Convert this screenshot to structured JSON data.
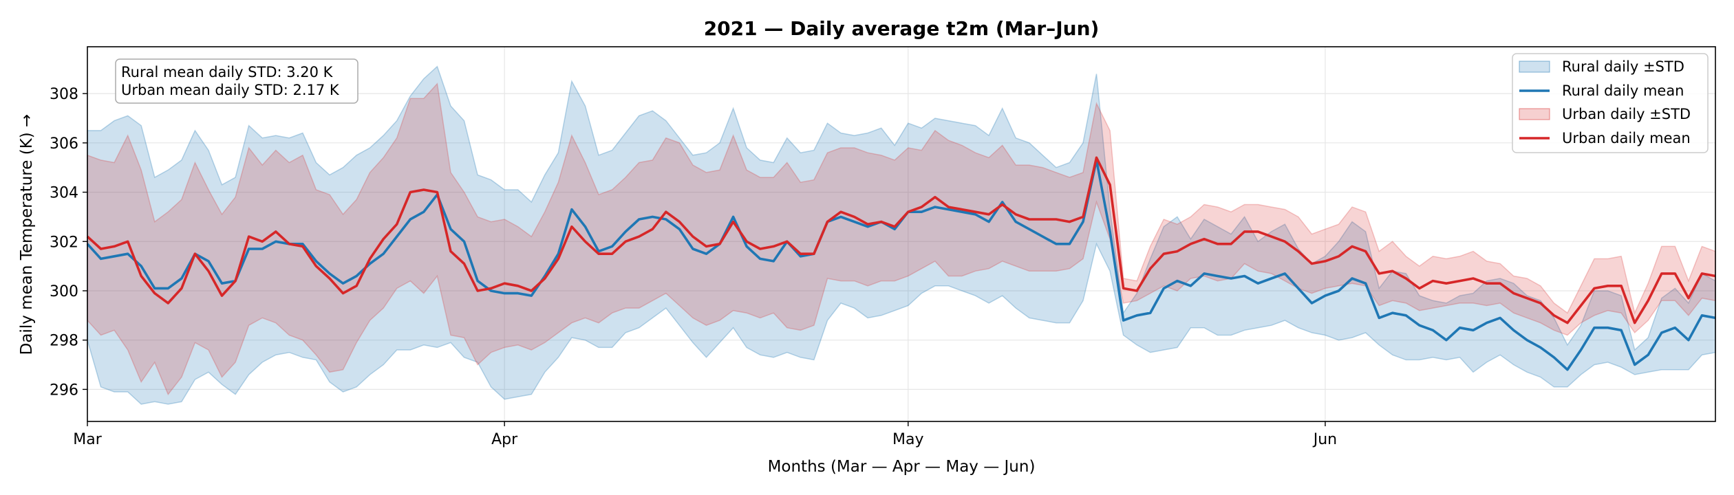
{
  "chart_data": {
    "type": "line",
    "title": "2021 — Daily average t2m (Mar–Jun)",
    "xlabel": "Months (Mar — Apr — May — Jun)",
    "ylabel": "Daily mean Temperature (K) →",
    "x_start": "2021-03-01",
    "x_end": "2021-06-30",
    "xlim": [
      "2021-03-01",
      "2021-06-30"
    ],
    "ylim": [
      294.7,
      309.9
    ],
    "yticks": [
      296,
      298,
      300,
      302,
      304,
      306,
      308
    ],
    "xticks": [
      {
        "date": "2021-03-01",
        "label": "Mar"
      },
      {
        "date": "2021-04-01",
        "label": "Apr"
      },
      {
        "date": "2021-05-01",
        "label": "May"
      },
      {
        "date": "2021-06-01",
        "label": "Jun"
      }
    ],
    "grid": true,
    "legend_position": "top-right",
    "annotation": [
      "Rural mean daily STD: 3.20 K",
      "Urban mean daily STD: 2.17 K"
    ],
    "series": [
      {
        "name": "Rural daily mean",
        "band_name": "Rural daily ±STD",
        "line_color": "#1f77b4",
        "band_color": "#1f77b4",
        "band_opacity": 0.22,
        "mean": [
          301.9,
          301.3,
          301.4,
          301.5,
          301.0,
          300.1,
          300.1,
          300.5,
          301.5,
          301.2,
          300.3,
          300.4,
          301.7,
          301.7,
          302.0,
          301.9,
          301.9,
          301.2,
          300.7,
          300.3,
          300.6,
          301.1,
          301.5,
          302.2,
          302.9,
          303.2,
          303.9,
          302.5,
          302.0,
          300.4,
          300.0,
          299.9,
          299.9,
          299.8,
          300.6,
          301.5,
          303.3,
          302.6,
          301.6,
          301.8,
          302.4,
          302.9,
          303.0,
          302.9,
          302.5,
          301.7,
          301.5,
          301.9,
          303.0,
          301.8,
          301.3,
          301.2,
          302.0,
          301.4,
          301.5,
          302.8,
          303.0,
          302.8,
          302.6,
          302.8,
          302.5,
          303.2,
          303.2,
          303.4,
          303.3,
          303.2,
          303.1,
          302.8,
          303.6,
          302.8,
          302.5,
          302.2,
          301.9,
          301.9,
          302.8,
          305.3,
          302.4,
          298.8,
          299.0,
          299.1,
          300.1,
          300.4,
          300.2,
          300.7,
          300.6,
          300.5,
          300.6,
          300.3,
          300.5,
          300.7,
          300.1,
          299.5,
          299.8,
          300.0,
          300.5,
          300.3,
          298.9,
          299.1,
          299.0,
          298.6,
          298.4,
          298.0,
          298.5,
          298.4,
          298.7,
          298.9,
          298.4,
          298.0,
          297.7,
          297.3,
          296.8,
          297.6,
          298.5,
          298.5,
          298.4,
          297.0,
          297.4,
          298.3,
          298.5,
          298.0,
          299.0,
          298.9
        ]
      },
      {
        "name": "Urban daily mean",
        "band_name": "Urban daily ±STD",
        "line_color": "#d62728",
        "band_color": "#d62728",
        "band_opacity": 0.2,
        "mean": [
          302.2,
          301.7,
          301.8,
          302.0,
          300.6,
          299.9,
          299.5,
          300.1,
          301.5,
          300.8,
          299.8,
          300.4,
          302.2,
          302.0,
          302.4,
          301.9,
          301.8,
          301.0,
          300.5,
          299.9,
          300.2,
          301.3,
          302.1,
          302.7,
          304.0,
          304.1,
          304.0,
          301.6,
          301.1,
          300.0,
          300.1,
          300.3,
          300.2,
          300.0,
          300.5,
          301.3,
          302.6,
          302.0,
          301.5,
          301.5,
          302.0,
          302.2,
          302.5,
          303.2,
          302.8,
          302.2,
          301.8,
          301.9,
          302.8,
          302.0,
          301.7,
          301.8,
          302.0,
          301.5,
          301.5,
          302.8,
          303.2,
          303.0,
          302.7,
          302.8,
          302.6,
          303.2,
          303.4,
          303.8,
          303.4,
          303.3,
          303.2,
          303.1,
          303.5,
          303.1,
          302.9,
          302.9,
          302.9,
          302.8,
          303.0,
          305.4,
          304.3,
          300.1,
          300.0,
          300.9,
          301.5,
          301.6,
          301.9,
          302.1,
          301.9,
          301.9,
          302.4,
          302.4,
          302.2,
          302.0,
          301.6,
          301.1,
          301.2,
          301.4,
          301.8,
          301.6,
          300.7,
          300.8,
          300.5,
          300.1,
          300.4,
          300.3,
          300.4,
          300.5,
          300.3,
          300.3,
          299.9,
          299.7,
          299.5,
          299.0,
          298.7,
          299.4,
          300.1,
          300.2,
          300.2,
          298.7,
          299.6,
          300.7,
          300.7,
          299.7,
          300.7,
          300.6
        ]
      }
    ],
    "rural_band_lower": [
      298.0,
      296.1,
      295.9,
      295.9,
      295.4,
      295.5,
      295.4,
      295.5,
      296.4,
      296.7,
      296.2,
      295.8,
      296.6,
      297.1,
      297.4,
      297.5,
      297.3,
      297.2,
      296.3,
      295.9,
      296.1,
      296.6,
      297.0,
      297.6,
      297.6,
      297.8,
      297.7,
      297.9,
      297.3,
      297.1,
      296.1,
      295.6,
      295.7,
      295.8,
      296.7,
      297.3,
      298.1,
      298.0,
      297.7,
      297.7,
      298.3,
      298.5,
      298.9,
      299.3,
      298.6,
      297.9,
      297.3,
      297.9,
      298.5,
      297.7,
      297.4,
      297.3,
      297.5,
      297.3,
      297.2,
      298.8,
      299.5,
      299.3,
      298.9,
      299.0,
      299.2,
      299.4,
      299.9,
      300.2,
      300.2,
      300.0,
      299.8,
      299.5,
      299.8,
      299.3,
      298.9,
      298.8,
      298.7,
      298.7,
      299.6,
      301.9,
      300.8,
      298.2,
      297.8,
      297.5,
      297.6,
      297.7,
      298.5,
      298.5,
      298.2,
      298.2,
      298.4,
      298.5,
      298.6,
      298.8,
      298.5,
      298.3,
      298.2,
      298.0,
      298.1,
      298.3,
      297.8,
      297.4,
      297.2,
      297.2,
      297.3,
      297.2,
      297.3,
      296.7,
      297.1,
      297.4,
      297.0,
      296.7,
      296.5,
      296.1,
      296.1,
      296.6,
      297.0,
      297.1,
      296.9,
      296.6,
      296.7,
      296.8,
      296.8,
      296.8,
      297.4,
      297.5
    ],
    "rural_band_upper": [
      306.5,
      306.5,
      306.9,
      307.1,
      306.7,
      304.6,
      304.9,
      305.3,
      306.5,
      305.7,
      304.3,
      304.6,
      306.7,
      306.2,
      306.3,
      306.2,
      306.4,
      305.2,
      304.7,
      305.0,
      305.5,
      305.8,
      306.3,
      306.9,
      307.9,
      308.6,
      309.1,
      307.5,
      306.9,
      304.7,
      304.5,
      304.1,
      304.1,
      303.6,
      304.7,
      305.6,
      308.5,
      307.5,
      305.5,
      305.7,
      306.4,
      307.1,
      307.3,
      306.9,
      306.2,
      305.5,
      305.6,
      306.0,
      307.4,
      305.8,
      305.3,
      305.2,
      306.2,
      305.6,
      305.7,
      306.8,
      306.4,
      306.3,
      306.4,
      306.6,
      305.9,
      306.8,
      306.6,
      307.0,
      306.9,
      306.8,
      306.7,
      306.3,
      307.4,
      306.2,
      306.0,
      305.5,
      305.0,
      305.2,
      306.0,
      308.8,
      303.3,
      299.1,
      299.9,
      301.3,
      302.6,
      303.0,
      302.1,
      302.9,
      302.6,
      302.3,
      303.0,
      302.0,
      302.4,
      302.7,
      301.7,
      301.1,
      301.4,
      302.0,
      302.8,
      302.4,
      300.1,
      300.8,
      300.7,
      299.8,
      299.6,
      299.5,
      299.8,
      299.9,
      300.4,
      300.5,
      300.3,
      299.8,
      299.6,
      298.9,
      297.8,
      298.6,
      300.0,
      300.0,
      299.8,
      297.6,
      298.1,
      299.7,
      300.1,
      299.5,
      300.7,
      300.4
    ],
    "urban_band_lower": [
      298.8,
      298.2,
      298.4,
      297.6,
      296.3,
      297.1,
      295.8,
      296.5,
      297.9,
      297.6,
      296.5,
      297.1,
      298.6,
      298.9,
      298.7,
      298.2,
      298.0,
      297.4,
      296.7,
      296.8,
      297.9,
      298.8,
      299.3,
      300.1,
      300.4,
      299.9,
      300.6,
      298.2,
      298.1,
      297.0,
      297.5,
      297.7,
      297.8,
      297.6,
      297.9,
      298.3,
      298.7,
      298.9,
      298.7,
      299.1,
      299.3,
      299.3,
      299.6,
      299.9,
      299.4,
      298.9,
      298.6,
      298.8,
      299.2,
      299.1,
      298.9,
      299.1,
      298.5,
      298.4,
      298.6,
      300.5,
      300.4,
      300.4,
      300.2,
      300.4,
      300.4,
      300.6,
      300.9,
      301.2,
      300.6,
      300.6,
      300.8,
      300.9,
      301.2,
      301.0,
      300.8,
      300.8,
      300.8,
      300.9,
      301.3,
      303.6,
      302.1,
      299.5,
      299.6,
      299.9,
      300.2,
      300.0,
      300.5,
      300.6,
      300.4,
      300.5,
      301.1,
      300.8,
      300.7,
      300.4,
      300.1,
      299.9,
      300.1,
      300.2,
      300.3,
      300.2,
      299.4,
      299.6,
      299.5,
      299.2,
      299.3,
      299.4,
      299.5,
      299.5,
      299.4,
      299.5,
      299.1,
      298.9,
      298.7,
      298.4,
      298.2,
      298.7,
      299.0,
      299.2,
      299.1,
      298.3,
      298.8,
      299.6,
      299.6,
      299.0,
      299.7,
      299.6
    ],
    "urban_band_upper": [
      305.5,
      305.3,
      305.2,
      306.3,
      304.9,
      302.8,
      303.2,
      303.7,
      305.2,
      304.1,
      303.1,
      303.8,
      305.8,
      305.1,
      305.7,
      305.2,
      305.5,
      304.1,
      303.9,
      303.1,
      303.7,
      304.8,
      305.4,
      306.2,
      307.8,
      307.8,
      308.4,
      304.8,
      304.0,
      303.0,
      302.8,
      302.9,
      302.6,
      302.2,
      303.2,
      304.4,
      306.3,
      305.2,
      303.9,
      304.1,
      304.6,
      305.2,
      305.3,
      306.2,
      306.0,
      305.1,
      304.8,
      304.9,
      306.3,
      304.9,
      304.6,
      304.6,
      305.2,
      304.4,
      304.5,
      305.6,
      305.8,
      305.8,
      305.6,
      305.5,
      305.3,
      305.8,
      305.7,
      306.5,
      306.1,
      305.9,
      305.6,
      305.4,
      305.9,
      305.1,
      305.1,
      305.0,
      304.8,
      304.6,
      304.8,
      307.6,
      306.5,
      300.5,
      300.4,
      301.8,
      302.9,
      302.7,
      303.0,
      303.5,
      303.4,
      303.2,
      303.5,
      303.5,
      303.4,
      303.3,
      303.0,
      302.3,
      302.5,
      302.7,
      303.4,
      303.2,
      301.6,
      302.0,
      301.4,
      301.0,
      301.4,
      301.3,
      301.4,
      301.6,
      301.2,
      301.1,
      300.6,
      300.5,
      300.2,
      299.5,
      299.1,
      300.2,
      301.3,
      301.3,
      301.4,
      299.1,
      300.3,
      301.8,
      301.8,
      300.4,
      301.8,
      301.6
    ]
  },
  "legend": {
    "items": [
      {
        "label": "Rural daily ±STD",
        "kind": "band",
        "color": "#1f77b4"
      },
      {
        "label": "Rural daily mean",
        "kind": "line",
        "color": "#1f77b4"
      },
      {
        "label": "Urban daily ±STD",
        "kind": "band",
        "color": "#d62728"
      },
      {
        "label": "Urban daily mean",
        "kind": "line",
        "color": "#d62728"
      }
    ]
  }
}
